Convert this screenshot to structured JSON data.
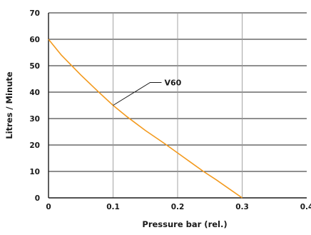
{
  "chart_data": {
    "type": "line",
    "xlabel": "Pressure bar (rel.)",
    "ylabel": "Litres / Minute",
    "xlim": [
      0,
      0.4
    ],
    "ylim": [
      0,
      70
    ],
    "x_ticks": [
      0,
      0.1,
      0.2,
      0.3,
      0.4
    ],
    "x_tick_labels": [
      "0",
      "0.1",
      "0.2",
      "0.3",
      "0.4"
    ],
    "y_ticks": [
      0,
      10,
      20,
      30,
      40,
      50,
      60,
      70
    ],
    "y_tick_labels": [
      "0",
      "10",
      "20",
      "30",
      "40",
      "50",
      "60",
      "70"
    ],
    "grid": true,
    "series": [
      {
        "name": "V60",
        "color": "#f39a1e",
        "x": [
          0,
          0.02,
          0.05,
          0.08,
          0.1,
          0.12,
          0.15,
          0.18,
          0.2,
          0.22,
          0.24,
          0.26,
          0.28,
          0.3
        ],
        "y": [
          60,
          54,
          46.5,
          39.5,
          35,
          31,
          25.5,
          20.5,
          17,
          13.5,
          10,
          6.8,
          3.4,
          0
        ]
      }
    ],
    "annotations": [
      {
        "text": "V60",
        "series": "V60"
      }
    ]
  }
}
